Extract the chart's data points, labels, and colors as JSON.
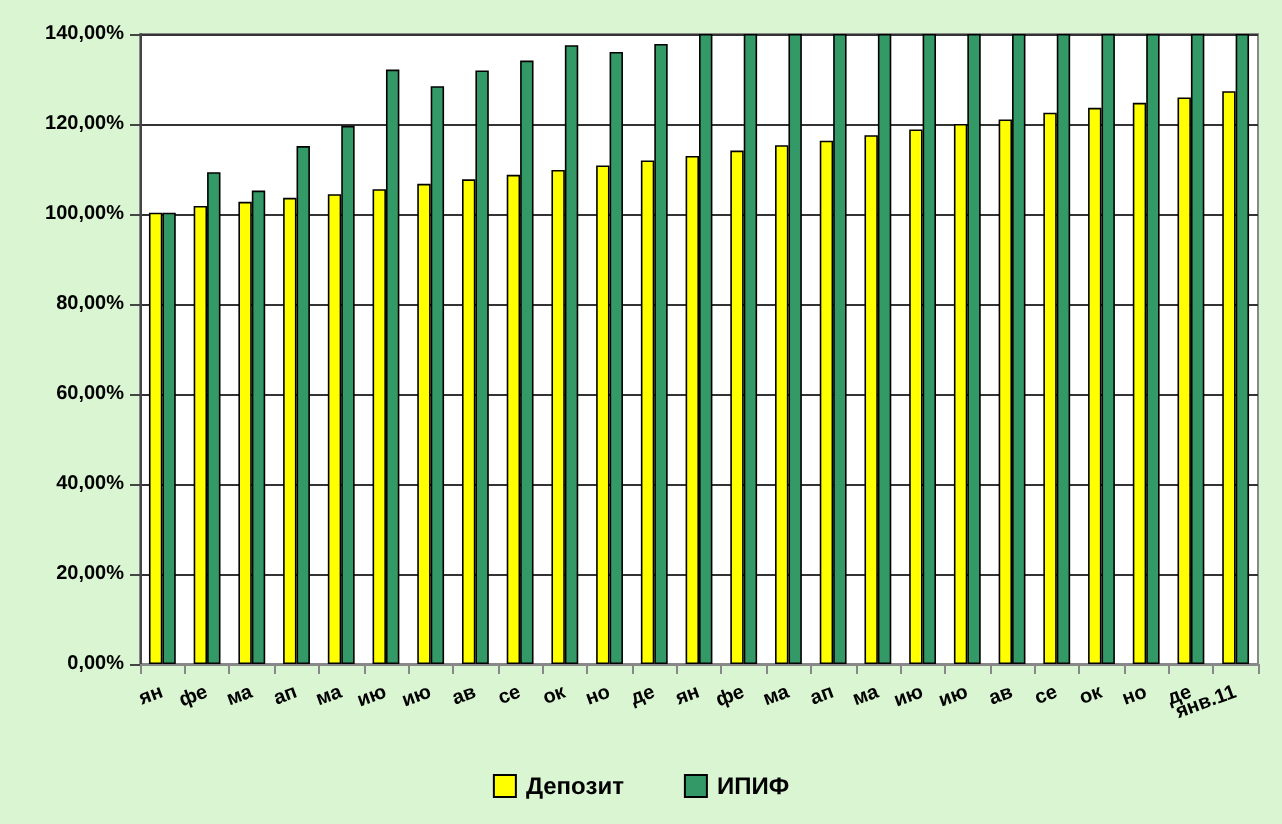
{
  "chart_data": {
    "type": "bar",
    "categories": [
      "ян",
      "фе",
      "ма",
      "ап",
      "ма",
      "ию",
      "ию",
      "ав",
      "се",
      "ок",
      "но",
      "де",
      "ян",
      "фе",
      "ма",
      "ап",
      "ма",
      "ию",
      "ию",
      "ав",
      "се",
      "ок",
      "но",
      "де",
      "янв.11"
    ],
    "series": [
      {
        "name": "Депозит",
        "color": "#ffff00",
        "values": [
          100.3,
          101.8,
          102.7,
          103.6,
          104.4,
          105.5,
          106.7,
          107.7,
          108.7,
          109.8,
          110.8,
          111.9,
          112.9,
          114.1,
          115.3,
          116.3,
          117.5,
          118.8,
          120,
          121,
          122.5,
          123.6,
          124.7,
          125.9,
          127.3
        ]
      },
      {
        "name": "ИПИФ",
        "color": "#339966",
        "values": [
          100.3,
          109.3,
          105.2,
          115.1,
          119.6,
          132.1,
          128.4,
          131.9,
          134.1,
          137.5,
          136,
          137.8,
          140,
          140,
          140,
          140,
          140,
          140,
          140,
          140,
          140,
          140,
          140,
          140,
          140
        ]
      }
    ],
    "ylim": [
      0,
      140
    ],
    "yticks": [
      {
        "value": 0,
        "label": "0,00%"
      },
      {
        "value": 20,
        "label": "20,00%"
      },
      {
        "value": 40,
        "label": "40,00%"
      },
      {
        "value": 60,
        "label": "60,00%"
      },
      {
        "value": 80,
        "label": "80,00%"
      },
      {
        "value": 100,
        "label": "100,00%"
      },
      {
        "value": 120,
        "label": "120,00%"
      },
      {
        "value": 140,
        "label": "140,00%"
      }
    ],
    "grid": "y",
    "legend": "bottom"
  }
}
